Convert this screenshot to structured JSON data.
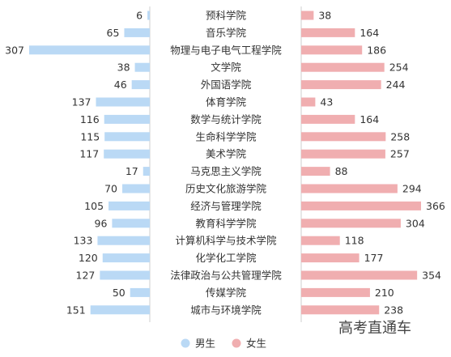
{
  "chart_data": {
    "type": "bar",
    "orientation": "horizontal-butterfly",
    "categories": [
      "预科学院",
      "音乐学院",
      "物理与电子电气工程学院",
      "文学院",
      "外国语学院",
      "体育学院",
      "数学与统计学院",
      "生命科学学院",
      "美术学院",
      "马克思主义学院",
      "历史文化旅游学院",
      "经济与管理学院",
      "教育科学学院",
      "计算机科学与技术学院",
      "化学化工学院",
      "法律政治与公共管理学院",
      "传媒学院",
      "城市与环境学院"
    ],
    "series": [
      {
        "name": "男生",
        "color": "#bad9f5",
        "values": [
          6,
          65,
          307,
          38,
          46,
          137,
          116,
          115,
          117,
          17,
          70,
          105,
          96,
          133,
          120,
          127,
          50,
          151
        ]
      },
      {
        "name": "女生",
        "color": "#f0aeb0",
        "values": [
          38,
          164,
          186,
          254,
          244,
          43,
          164,
          258,
          257,
          88,
          294,
          366,
          304,
          118,
          177,
          354,
          210,
          238
        ]
      }
    ],
    "legend_position": "bottom-center",
    "grid": false
  },
  "watermark": "高考直通车"
}
